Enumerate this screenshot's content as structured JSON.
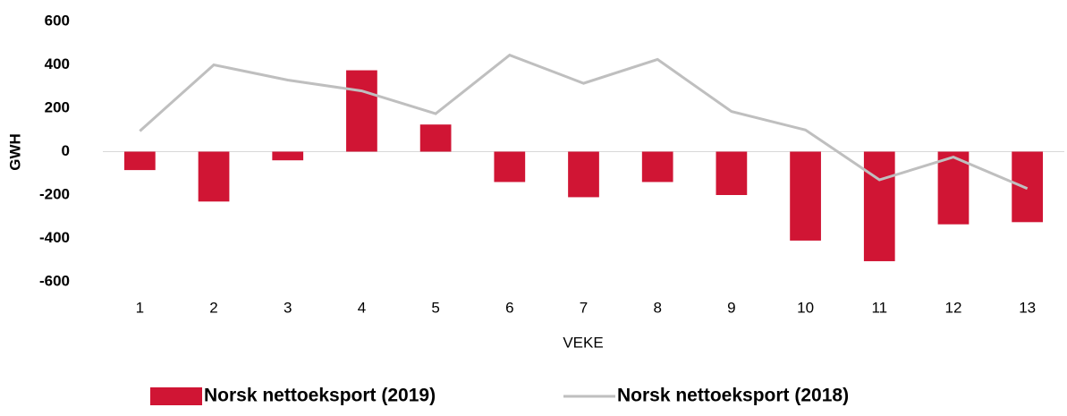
{
  "chart_data": {
    "type": "bar",
    "x_label": "VEKE",
    "y_label": "GWH",
    "categories": [
      "1",
      "2",
      "3",
      "4",
      "5",
      "6",
      "7",
      "8",
      "9",
      "10",
      "11",
      "12",
      "13"
    ],
    "series": [
      {
        "name": "Norsk nettoeksport (2019)",
        "type": "bar",
        "color": "#d01534",
        "values": [
          -85,
          -230,
          -40,
          375,
          125,
          -140,
          -210,
          -140,
          -200,
          -410,
          -505,
          -335,
          -325
        ]
      },
      {
        "name": "Norsk nettoeksport (2018)",
        "type": "line",
        "color": "#bfbfbf",
        "values": [
          95,
          400,
          330,
          280,
          175,
          445,
          315,
          425,
          185,
          100,
          -130,
          -25,
          -170
        ]
      }
    ],
    "ylim": [
      -600,
      600
    ],
    "yticks": [
      -600,
      -400,
      -200,
      0,
      200,
      400,
      600
    ],
    "grid": false,
    "legend": "bottom"
  }
}
